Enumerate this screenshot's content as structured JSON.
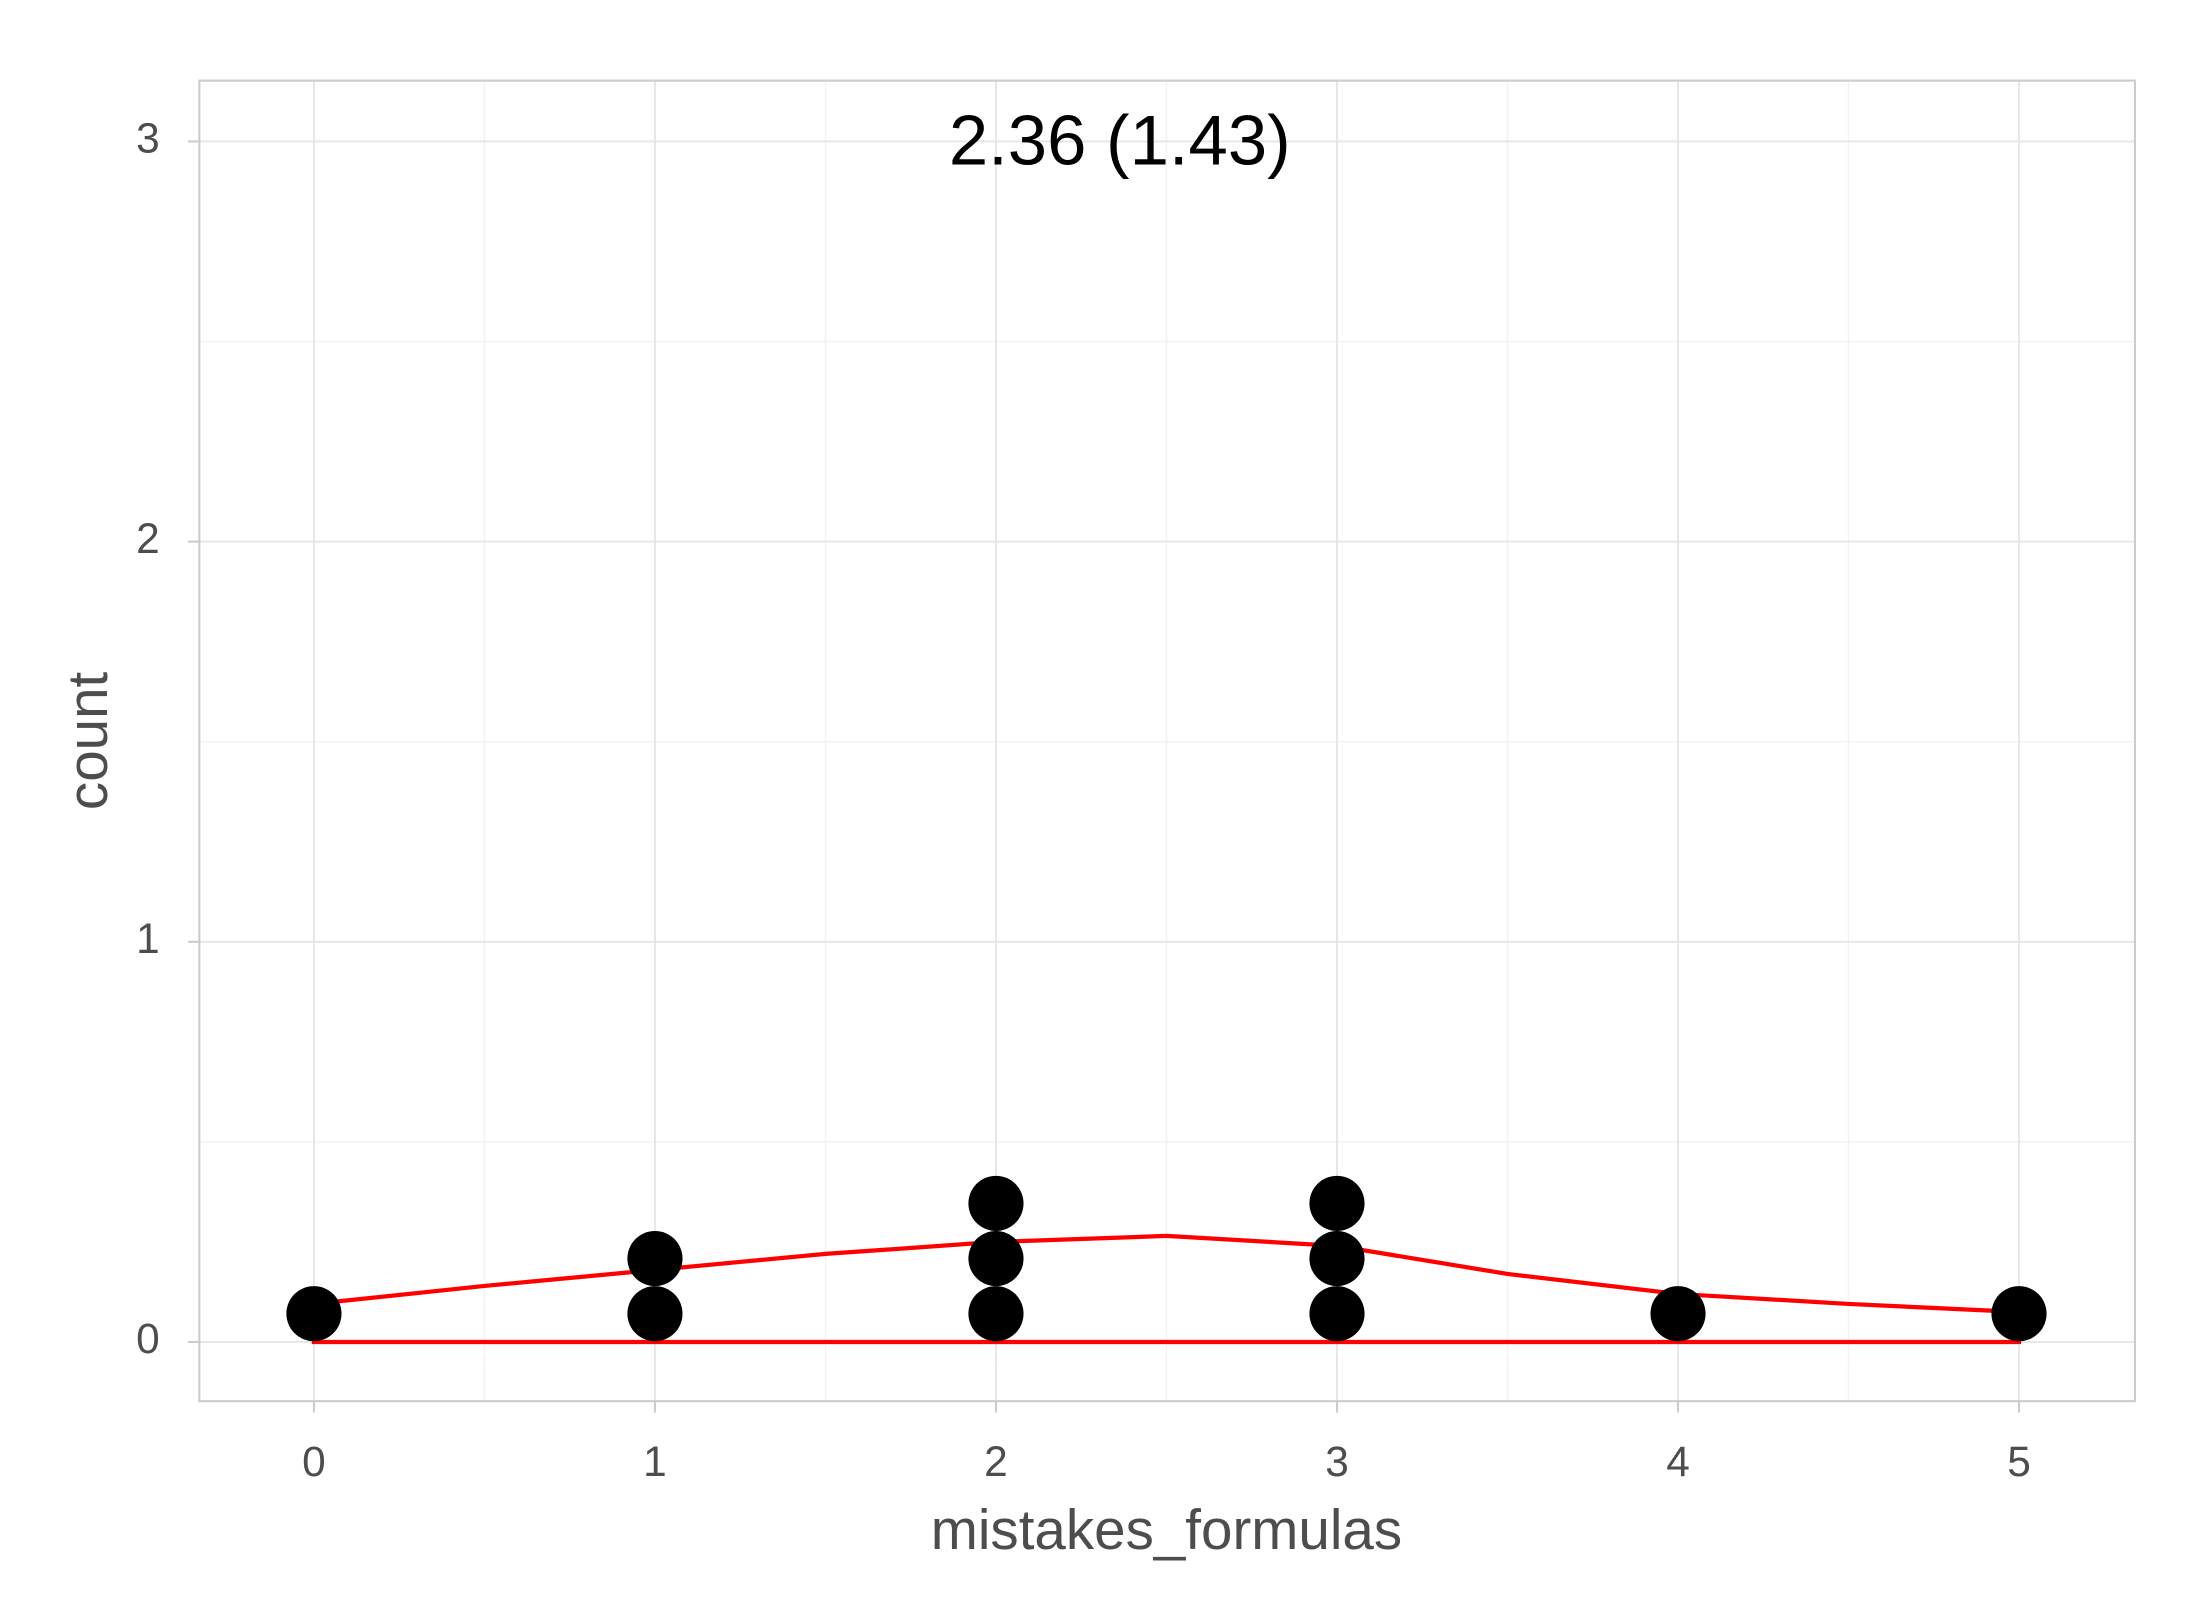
{
  "chart_data": {
    "type": "dotplot",
    "annotation": "2.36 (1.43)",
    "x_label": "mistakes_formulas",
    "y_label": "count",
    "x": [
      0,
      1,
      1,
      2,
      2,
      2,
      3,
      3,
      3,
      4,
      5
    ],
    "color": "#000000",
    "density": {
      "color": "#ff0000",
      "x": [
        0,
        0.5,
        1,
        1.5,
        2,
        2.5,
        3,
        3.5,
        4,
        4.5,
        5
      ],
      "values": [
        0.095,
        0.14,
        0.18,
        0.22,
        0.25,
        0.265,
        0.24,
        0.17,
        0.12,
        0.095,
        0.075
      ]
    },
    "xlim": [
      -0.336,
      5.34
    ],
    "xticks": [
      0,
      1,
      2,
      3,
      4,
      5
    ],
    "ylim": [
      -0.148,
      3.152
    ],
    "yticks": [
      0,
      1,
      2,
      3
    ],
    "grid": true
  }
}
